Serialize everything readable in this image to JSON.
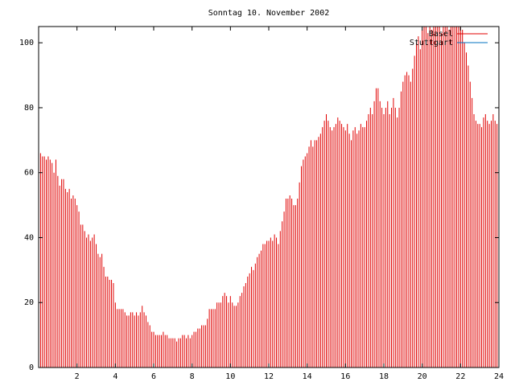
{
  "chart_data": {
    "type": "impulse",
    "title": "Sonntag 10. November 2002",
    "xlim": [
      0,
      24
    ],
    "ylim": [
      0,
      105
    ],
    "xticks": [
      2,
      4,
      6,
      8,
      10,
      12,
      14,
      16,
      18,
      20,
      22,
      24
    ],
    "yticks": [
      0,
      20,
      40,
      60,
      80,
      100
    ],
    "legend": "top-right",
    "series": [
      {
        "name": "Basel",
        "color": "#e00000",
        "x": [
          0,
          0.1,
          0.2,
          0.3,
          0.4,
          0.5,
          0.6,
          0.7,
          0.8,
          0.9,
          1,
          1.1,
          1.2,
          1.3,
          1.4,
          1.5,
          1.6,
          1.7,
          1.8,
          1.9,
          2,
          2.1,
          2.2,
          2.3,
          2.4,
          2.5,
          2.6,
          2.7,
          2.8,
          2.9,
          3,
          3.1,
          3.2,
          3.3,
          3.4,
          3.5,
          3.6,
          3.7,
          3.8,
          3.9,
          4,
          4.1,
          4.2,
          4.3,
          4.4,
          4.5,
          4.6,
          4.7,
          4.8,
          4.9,
          5,
          5.1,
          5.2,
          5.3,
          5.4,
          5.5,
          5.6,
          5.7,
          5.8,
          5.9,
          6,
          6.1,
          6.2,
          6.3,
          6.4,
          6.5,
          6.6,
          6.7,
          6.8,
          6.9,
          7,
          7.1,
          7.2,
          7.3,
          7.4,
          7.5,
          7.6,
          7.7,
          7.8,
          7.9,
          8,
          8.1,
          8.2,
          8.3,
          8.4,
          8.5,
          8.6,
          8.7,
          8.8,
          8.9,
          9,
          9.1,
          9.2,
          9.3,
          9.4,
          9.5,
          9.6,
          9.7,
          9.8,
          9.9,
          10,
          10.1,
          10.2,
          10.3,
          10.4,
          10.5,
          10.6,
          10.7,
          10.8,
          10.9,
          11,
          11.1,
          11.2,
          11.3,
          11.4,
          11.5,
          11.6,
          11.7,
          11.8,
          11.9,
          12,
          12.1,
          12.2,
          12.3,
          12.4,
          12.5,
          12.6,
          12.7,
          12.8,
          12.9,
          13,
          13.1,
          13.2,
          13.3,
          13.4,
          13.5,
          13.6,
          13.7,
          13.8,
          13.9,
          14,
          14.1,
          14.2,
          14.3,
          14.4,
          14.5,
          14.6,
          14.7,
          14.8,
          14.9,
          15,
          15.1,
          15.2,
          15.3,
          15.4,
          15.5,
          15.6,
          15.7,
          15.8,
          15.9,
          16,
          16.1,
          16.2,
          16.3,
          16.4,
          16.5,
          16.6,
          16.7,
          16.8,
          16.9,
          17,
          17.1,
          17.2,
          17.3,
          17.4,
          17.5,
          17.6,
          17.7,
          17.8,
          17.9,
          18,
          18.1,
          18.2,
          18.3,
          18.4,
          18.5,
          18.6,
          18.7,
          18.8,
          18.9,
          19,
          19.1,
          19.2,
          19.3,
          19.4,
          19.5,
          19.6,
          19.7,
          19.8,
          19.9,
          20,
          20.1,
          20.2,
          20.3,
          20.4,
          20.5,
          20.6,
          20.7,
          20.8,
          20.9,
          21,
          21.1,
          21.2,
          21.3,
          21.4,
          21.5,
          21.6,
          21.7,
          21.8,
          21.9,
          22,
          22.1,
          22.2,
          22.3,
          22.4,
          22.5,
          22.6,
          22.7,
          22.8,
          22.9,
          23,
          23.1,
          23.2,
          23.3,
          23.4,
          23.5,
          23.6,
          23.7,
          23.8,
          23.9
        ],
        "values": [
          67,
          66,
          65,
          65,
          64,
          65,
          64,
          63,
          60,
          64,
          59,
          56,
          58,
          58,
          55,
          54,
          55,
          52,
          53,
          52,
          50,
          48,
          44,
          44,
          42,
          40,
          41,
          39,
          40,
          41,
          38,
          35,
          34,
          35,
          31,
          28,
          28,
          27,
          27,
          26,
          20,
          18,
          18,
          18,
          18,
          17,
          16,
          16,
          17,
          17,
          16,
          17,
          16,
          17,
          19,
          17,
          16,
          14,
          13,
          11,
          11,
          10,
          10,
          10,
          10,
          11,
          10,
          10,
          9,
          9,
          9,
          9,
          8,
          9,
          9,
          10,
          10,
          9,
          10,
          9,
          10,
          11,
          11,
          12,
          12,
          13,
          13,
          13,
          15,
          18,
          18,
          18,
          18,
          20,
          20,
          20,
          22,
          23,
          22,
          20,
          22,
          20,
          19,
          19,
          20,
          22,
          23,
          25,
          26,
          28,
          29,
          31,
          30,
          32,
          34,
          35,
          36,
          38,
          38,
          39,
          39,
          40,
          39,
          41,
          40,
          38,
          42,
          45,
          48,
          52,
          52,
          53,
          52,
          50,
          50,
          52,
          57,
          62,
          64,
          65,
          66,
          68,
          70,
          68,
          70,
          70,
          71,
          72,
          74,
          76,
          78,
          76,
          74,
          73,
          74,
          75,
          77,
          76,
          75,
          74,
          73,
          75,
          72,
          70,
          73,
          74,
          72,
          73,
          75,
          74,
          74,
          76,
          78,
          80,
          78,
          82,
          86,
          86,
          82,
          80,
          78,
          80,
          82,
          78,
          80,
          83,
          80,
          77,
          80,
          85,
          88,
          90,
          91,
          90,
          88,
          92,
          96,
          100,
          102,
          98,
          104,
          105,
          105,
          103,
          105,
          104,
          105,
          105,
          105,
          105,
          103,
          105,
          105,
          105,
          104,
          105,
          105,
          105,
          105,
          105,
          105,
          104,
          100,
          97,
          93,
          88,
          83,
          78,
          76,
          75,
          75,
          74,
          77,
          78,
          76,
          75,
          76,
          78,
          76,
          75
        ]
      },
      {
        "name": "Stuttgart",
        "color": "#0070c0",
        "x": [
          0,
          23.5
        ],
        "values": [
          0,
          0
        ]
      }
    ]
  }
}
